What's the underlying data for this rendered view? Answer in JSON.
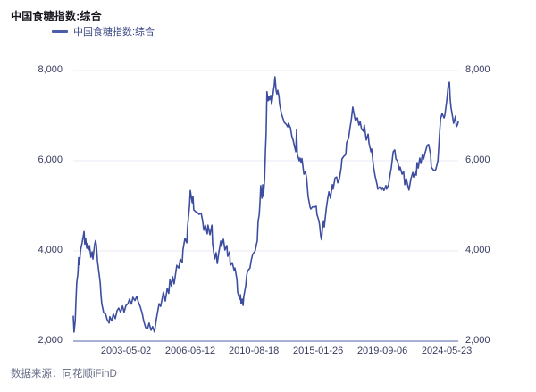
{
  "header": {
    "title": "中国食糖指数:综合"
  },
  "legend": {
    "label": "中国食糖指数:综合",
    "swatch_color": "#4C5CA8"
  },
  "footer": {
    "source": "数据来源：同花顺iFinD"
  },
  "colors": {
    "background": "#ffffff",
    "line": "#3D4EA0",
    "gridline": "#E9EBF5",
    "axis_line": "#A8B1D6",
    "tick_label": "#363B5E",
    "title_text": "#17171f",
    "legend_text": "#3A4784",
    "source_text": "#676C86"
  },
  "chart_data": {
    "type": "line",
    "title": "中国食糖指数:综合",
    "xlabel": "",
    "ylabel": "",
    "ylim": [
      2000,
      8000
    ],
    "grid": "horizontal",
    "legend_position": "top-left",
    "x_axis_kind": "trading-date index, tick positions given as fraction along axis",
    "x_ticks": [
      {
        "label": "2003-05-02",
        "pos": 0.137
      },
      {
        "label": "2006-06-12",
        "pos": 0.304
      },
      {
        "label": "2010-08-18",
        "pos": 0.469
      },
      {
        "label": "2015-01-26",
        "pos": 0.636
      },
      {
        "label": "2019-09-06",
        "pos": 0.803
      },
      {
        "label": "2024-05-23",
        "pos": 0.97
      }
    ],
    "y_ticks": [
      {
        "label": "2,000",
        "value": 2000
      },
      {
        "label": "4,000",
        "value": 4000
      },
      {
        "label": "6,000",
        "value": 6000
      },
      {
        "label": "8,000",
        "value": 8000
      }
    ],
    "series": [
      {
        "name": "中国食糖指数:综合",
        "color": "#3D4EA0",
        "points": [
          [
            0,
            2550
          ],
          [
            0.002,
            2200
          ],
          [
            0.005,
            2450
          ],
          [
            0.007,
            2900
          ],
          [
            0.009,
            3300
          ],
          [
            0.012,
            3500
          ],
          [
            0.014,
            3850
          ],
          [
            0.016,
            3700
          ],
          [
            0.019,
            4020
          ],
          [
            0.023,
            4180
          ],
          [
            0.028,
            4430
          ],
          [
            0.03,
            4150
          ],
          [
            0.032,
            4280
          ],
          [
            0.035,
            4060
          ],
          [
            0.037,
            4160
          ],
          [
            0.039,
            4020
          ],
          [
            0.042,
            4120
          ],
          [
            0.046,
            3860
          ],
          [
            0.049,
            3980
          ],
          [
            0.051,
            3820
          ],
          [
            0.056,
            4160
          ],
          [
            0.058,
            4230
          ],
          [
            0.06,
            4120
          ],
          [
            0.063,
            3760
          ],
          [
            0.07,
            3290
          ],
          [
            0.072,
            3030
          ],
          [
            0.074,
            2830
          ],
          [
            0.079,
            2630
          ],
          [
            0.084,
            2600
          ],
          [
            0.088,
            2480
          ],
          [
            0.093,
            2400
          ],
          [
            0.095,
            2540
          ],
          [
            0.1,
            2450
          ],
          [
            0.104,
            2600
          ],
          [
            0.109,
            2500
          ],
          [
            0.114,
            2680
          ],
          [
            0.118,
            2730
          ],
          [
            0.123,
            2640
          ],
          [
            0.128,
            2780
          ],
          [
            0.132,
            2640
          ],
          [
            0.137,
            2790
          ],
          [
            0.142,
            2830
          ],
          [
            0.146,
            2930
          ],
          [
            0.151,
            2820
          ],
          [
            0.155,
            2970
          ],
          [
            0.16,
            2900
          ],
          [
            0.165,
            2990
          ],
          [
            0.169,
            2870
          ],
          [
            0.174,
            2760
          ],
          [
            0.179,
            2620
          ],
          [
            0.183,
            2440
          ],
          [
            0.188,
            2300
          ],
          [
            0.193,
            2280
          ],
          [
            0.197,
            2400
          ],
          [
            0.202,
            2240
          ],
          [
            0.206,
            2320
          ],
          [
            0.211,
            2200
          ],
          [
            0.216,
            2500
          ],
          [
            0.22,
            2690
          ],
          [
            0.223,
            2830
          ],
          [
            0.227,
            2770
          ],
          [
            0.234,
            3090
          ],
          [
            0.239,
            2890
          ],
          [
            0.244,
            3170
          ],
          [
            0.248,
            3060
          ],
          [
            0.251,
            3370
          ],
          [
            0.255,
            3220
          ],
          [
            0.258,
            3430
          ],
          [
            0.262,
            3270
          ],
          [
            0.269,
            3680
          ],
          [
            0.274,
            3620
          ],
          [
            0.278,
            3820
          ],
          [
            0.283,
            3740
          ],
          [
            0.285,
            4020
          ],
          [
            0.29,
            4280
          ],
          [
            0.295,
            4180
          ],
          [
            0.297,
            4550
          ],
          [
            0.302,
            5010
          ],
          [
            0.304,
            5340
          ],
          [
            0.309,
            5070
          ],
          [
            0.311,
            5210
          ],
          [
            0.313,
            4910
          ],
          [
            0.318,
            4870
          ],
          [
            0.323,
            4850
          ],
          [
            0.327,
            4810
          ],
          [
            0.332,
            4840
          ],
          [
            0.336,
            4670
          ],
          [
            0.339,
            4460
          ],
          [
            0.343,
            4570
          ],
          [
            0.348,
            4380
          ],
          [
            0.35,
            4570
          ],
          [
            0.355,
            4360
          ],
          [
            0.36,
            4570
          ],
          [
            0.362,
            4160
          ],
          [
            0.367,
            3820
          ],
          [
            0.371,
            3960
          ],
          [
            0.374,
            3720
          ],
          [
            0.378,
            3960
          ],
          [
            0.383,
            4220
          ],
          [
            0.385,
            4100
          ],
          [
            0.39,
            4260
          ],
          [
            0.394,
            4020
          ],
          [
            0.399,
            4120
          ],
          [
            0.401,
            3880
          ],
          [
            0.406,
            3980
          ],
          [
            0.408,
            3680
          ],
          [
            0.413,
            3740
          ],
          [
            0.418,
            3560
          ],
          [
            0.42,
            3620
          ],
          [
            0.425,
            3370
          ],
          [
            0.427,
            3090
          ],
          [
            0.432,
            2930
          ],
          [
            0.434,
            3030
          ],
          [
            0.436,
            2830
          ],
          [
            0.439,
            2930
          ],
          [
            0.441,
            2790
          ],
          [
            0.443,
            2990
          ],
          [
            0.448,
            3230
          ],
          [
            0.45,
            3430
          ],
          [
            0.452,
            3530
          ],
          [
            0.455,
            3580
          ],
          [
            0.459,
            3620
          ],
          [
            0.462,
            3780
          ],
          [
            0.466,
            3920
          ],
          [
            0.469,
            3960
          ],
          [
            0.471,
            3980
          ],
          [
            0.473,
            4020
          ],
          [
            0.476,
            4160
          ],
          [
            0.478,
            4220
          ],
          [
            0.48,
            4650
          ],
          [
            0.483,
            4810
          ],
          [
            0.485,
            5070
          ],
          [
            0.487,
            5450
          ],
          [
            0.49,
            5170
          ],
          [
            0.492,
            5470
          ],
          [
            0.494,
            5210
          ],
          [
            0.497,
            5600
          ],
          [
            0.499,
            6200
          ],
          [
            0.501,
            6600
          ],
          [
            0.503,
            7530
          ],
          [
            0.506,
            7330
          ],
          [
            0.508,
            7430
          ],
          [
            0.51,
            7350
          ],
          [
            0.513,
            7450
          ],
          [
            0.515,
            7250
          ],
          [
            0.517,
            7350
          ],
          [
            0.52,
            7550
          ],
          [
            0.522,
            7680
          ],
          [
            0.524,
            7860
          ],
          [
            0.527,
            7550
          ],
          [
            0.529,
            7480
          ],
          [
            0.531,
            7560
          ],
          [
            0.534,
            7440
          ],
          [
            0.536,
            7250
          ],
          [
            0.541,
            7030
          ],
          [
            0.545,
            6930
          ],
          [
            0.548,
            6850
          ],
          [
            0.552,
            6820
          ],
          [
            0.557,
            6750
          ],
          [
            0.559,
            6830
          ],
          [
            0.564,
            6730
          ],
          [
            0.568,
            6530
          ],
          [
            0.571,
            6460
          ],
          [
            0.575,
            6300
          ],
          [
            0.578,
            6200
          ],
          [
            0.58,
            6690
          ],
          [
            0.582,
            6140
          ],
          [
            0.587,
            6000
          ],
          [
            0.589,
            6060
          ],
          [
            0.592,
            5950
          ],
          [
            0.594,
            6050
          ],
          [
            0.599,
            5700
          ],
          [
            0.603,
            5760
          ],
          [
            0.606,
            5620
          ],
          [
            0.61,
            5210
          ],
          [
            0.615,
            4970
          ],
          [
            0.617,
            4930
          ],
          [
            0.622,
            4980
          ],
          [
            0.626,
            4970
          ],
          [
            0.631,
            4990
          ],
          [
            0.633,
            4810
          ],
          [
            0.638,
            4670
          ],
          [
            0.64,
            4570
          ],
          [
            0.643,
            4320
          ],
          [
            0.645,
            4250
          ],
          [
            0.647,
            4480
          ],
          [
            0.65,
            4670
          ],
          [
            0.652,
            4530
          ],
          [
            0.657,
            4930
          ],
          [
            0.661,
            5170
          ],
          [
            0.664,
            5310
          ],
          [
            0.668,
            5170
          ],
          [
            0.673,
            5470
          ],
          [
            0.675,
            5370
          ],
          [
            0.68,
            5620
          ],
          [
            0.684,
            5640
          ],
          [
            0.687,
            5510
          ],
          [
            0.691,
            5580
          ],
          [
            0.696,
            5860
          ],
          [
            0.698,
            6040
          ],
          [
            0.703,
            6100
          ],
          [
            0.708,
            6140
          ],
          [
            0.71,
            6400
          ],
          [
            0.715,
            6500
          ],
          [
            0.719,
            6740
          ],
          [
            0.722,
            6900
          ],
          [
            0.726,
            7190
          ],
          [
            0.731,
            6950
          ],
          [
            0.733,
            6890
          ],
          [
            0.738,
            6950
          ],
          [
            0.742,
            6790
          ],
          [
            0.745,
            6870
          ],
          [
            0.749,
            6700
          ],
          [
            0.754,
            6650
          ],
          [
            0.756,
            6790
          ],
          [
            0.761,
            6460
          ],
          [
            0.766,
            6590
          ],
          [
            0.768,
            6400
          ],
          [
            0.773,
            6200
          ],
          [
            0.775,
            6260
          ],
          [
            0.78,
            5860
          ],
          [
            0.784,
            5660
          ],
          [
            0.789,
            5470
          ],
          [
            0.791,
            5370
          ],
          [
            0.796,
            5420
          ],
          [
            0.8,
            5350
          ],
          [
            0.803,
            5410
          ],
          [
            0.807,
            5340
          ],
          [
            0.812,
            5450
          ],
          [
            0.814,
            5370
          ],
          [
            0.819,
            5470
          ],
          [
            0.824,
            5740
          ],
          [
            0.826,
            5840
          ],
          [
            0.831,
            6200
          ],
          [
            0.835,
            6240
          ],
          [
            0.838,
            6040
          ],
          [
            0.842,
            6000
          ],
          [
            0.847,
            5800
          ],
          [
            0.849,
            5860
          ],
          [
            0.854,
            5700
          ],
          [
            0.858,
            5760
          ],
          [
            0.861,
            5470
          ],
          [
            0.865,
            5600
          ],
          [
            0.87,
            5410
          ],
          [
            0.872,
            5350
          ],
          [
            0.877,
            5600
          ],
          [
            0.882,
            5740
          ],
          [
            0.884,
            5640
          ],
          [
            0.889,
            5760
          ],
          [
            0.891,
            5680
          ],
          [
            0.893,
            5960
          ],
          [
            0.896,
            5840
          ],
          [
            0.9,
            6060
          ],
          [
            0.903,
            5940
          ],
          [
            0.907,
            6140
          ],
          [
            0.91,
            6040
          ],
          [
            0.914,
            6180
          ],
          [
            0.916,
            6240
          ],
          [
            0.919,
            6340
          ],
          [
            0.923,
            6360
          ],
          [
            0.928,
            6140
          ],
          [
            0.93,
            5860
          ],
          [
            0.935,
            5800
          ],
          [
            0.94,
            5780
          ],
          [
            0.942,
            5820
          ],
          [
            0.947,
            6000
          ],
          [
            0.951,
            6550
          ],
          [
            0.954,
            6930
          ],
          [
            0.958,
            7050
          ],
          [
            0.963,
            6950
          ],
          [
            0.965,
            7000
          ],
          [
            0.97,
            7330
          ],
          [
            0.974,
            7680
          ],
          [
            0.977,
            7740
          ],
          [
            0.979,
            7390
          ],
          [
            0.981,
            7190
          ],
          [
            0.986,
            6930
          ],
          [
            0.988,
            6830
          ],
          [
            0.993,
            6990
          ],
          [
            0.995,
            6750
          ],
          [
            0.998,
            6790
          ],
          [
            1,
            6860
          ]
        ]
      }
    ]
  }
}
